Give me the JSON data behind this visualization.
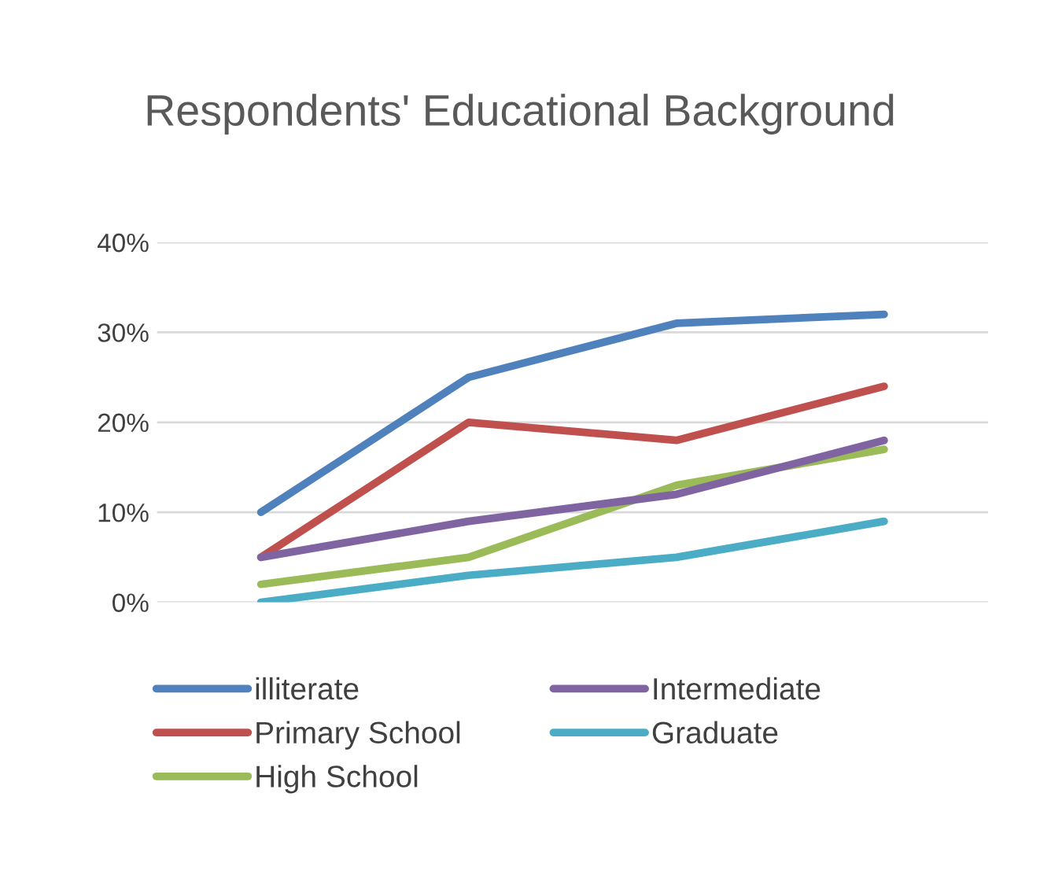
{
  "chart_data": {
    "type": "line",
    "title": "Respondents' Educational Background",
    "categories": [
      null,
      null,
      null,
      null
    ],
    "series": [
      {
        "name": "illiterate",
        "color": "#4f81bd",
        "values": [
          10,
          25,
          31,
          32
        ]
      },
      {
        "name": "Primary School",
        "color": "#c0504d",
        "values": [
          5,
          20,
          18,
          24
        ]
      },
      {
        "name": "High School",
        "color": "#9bbb59",
        "values": [
          2,
          5,
          13,
          17
        ]
      },
      {
        "name": "Intermediate",
        "color": "#8064a2",
        "values": [
          5,
          9,
          12,
          18
        ]
      },
      {
        "name": "Graduate",
        "color": "#4bacc6",
        "values": [
          0,
          3,
          5,
          9
        ]
      }
    ],
    "ylim": [
      0,
      40
    ],
    "yticks": [
      {
        "value": 0,
        "label": "0%"
      },
      {
        "value": 10,
        "label": "10%"
      },
      {
        "value": 20,
        "label": "20%"
      },
      {
        "value": 30,
        "label": "30%"
      },
      {
        "value": 40,
        "label": "40%"
      }
    ],
    "grid": "y",
    "legend": "bottom",
    "tick_labels": "y",
    "marker": "none",
    "line_style": "solid"
  }
}
